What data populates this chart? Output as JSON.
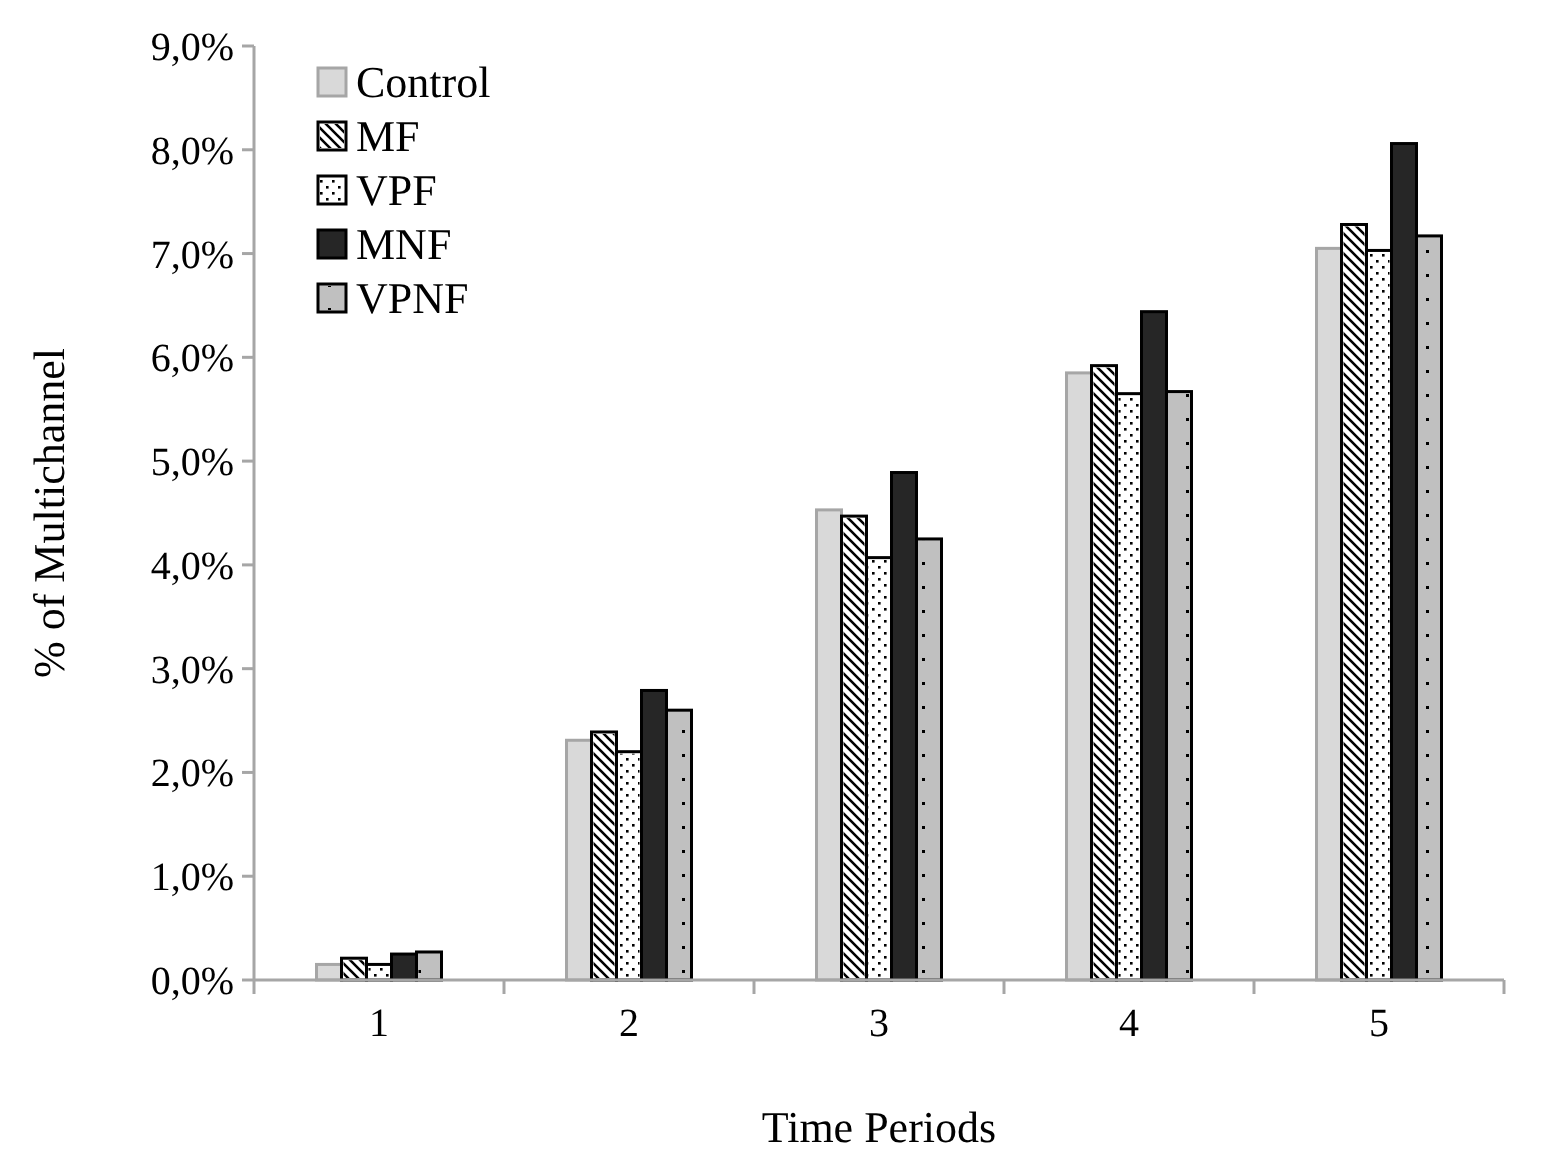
{
  "chart_data": {
    "type": "bar",
    "xlabel": "Time Periods",
    "ylabel": "% of Multichannel",
    "categories": [
      "1",
      "2",
      "3",
      "4",
      "5"
    ],
    "series": [
      {
        "name": "Control",
        "color": "#d9d9d9",
        "values": [
          0.15,
          2.31,
          4.53,
          5.85,
          7.05
        ]
      },
      {
        "name": "MF",
        "color": "#ffffff",
        "values": [
          0.21,
          2.39,
          4.47,
          5.92,
          7.28
        ]
      },
      {
        "name": "VPF",
        "color": "#ffffff",
        "values": [
          0.15,
          2.2,
          4.07,
          5.65,
          7.03
        ]
      },
      {
        "name": "MNF",
        "color": "#262626",
        "values": [
          0.25,
          2.79,
          4.89,
          6.44,
          8.06
        ]
      },
      {
        "name": "VPNF",
        "color": "#c0c0c0",
        "values": [
          0.27,
          2.6,
          4.25,
          5.67,
          7.17
        ]
      }
    ],
    "ylim": [
      0,
      9
    ],
    "yticks": [
      {
        "value": 0,
        "label": "0,0%"
      },
      {
        "value": 1,
        "label": "1,0%"
      },
      {
        "value": 2,
        "label": "2,0%"
      },
      {
        "value": 3,
        "label": "3,0%"
      },
      {
        "value": 4,
        "label": "4,0%"
      },
      {
        "value": 5,
        "label": "5,0%"
      },
      {
        "value": 6,
        "label": "6,0%"
      },
      {
        "value": 7,
        "label": "7,0%"
      },
      {
        "value": 8,
        "label": "8,0%"
      },
      {
        "value": 9,
        "label": "9,0%"
      }
    ],
    "grid": false,
    "legend": "top left"
  }
}
